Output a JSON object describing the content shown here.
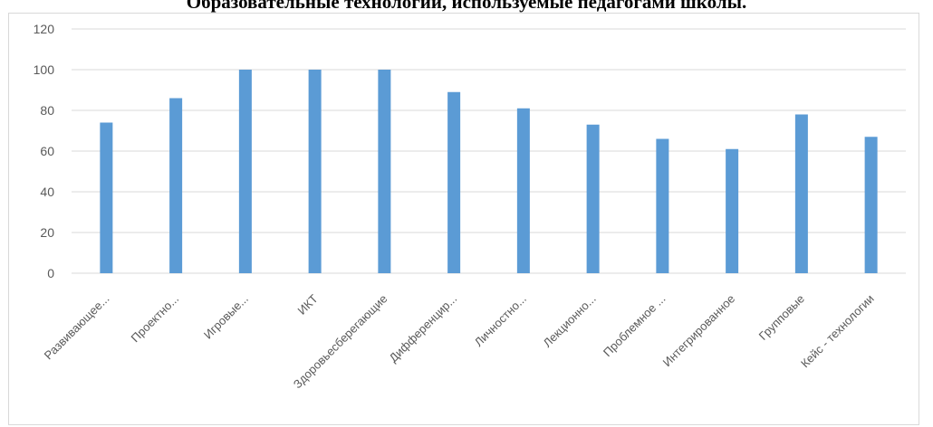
{
  "title": "Образовательные технологии, используемые педагогами школы.",
  "chart_data": {
    "type": "bar",
    "title": "",
    "xlabel": "",
    "ylabel": "",
    "categories": [
      "Развивающее...",
      "Проектно...",
      "Игровые...",
      "ИКТ",
      "Здоровьесберегающие",
      "Дифференцир...",
      "Личностно...",
      "Лекционно...",
      "Проблемное ...",
      "Интегрированное",
      "Групповые",
      "Кейс - технологии"
    ],
    "values": [
      74,
      86,
      100,
      100,
      100,
      89,
      81,
      73,
      66,
      61,
      78,
      67
    ],
    "ylim": [
      0,
      120
    ],
    "yticks": [
      0,
      20,
      40,
      60,
      80,
      100,
      120
    ],
    "grid": true,
    "legend": "none",
    "bar_color": "#5b9bd5",
    "grid_color": "#d9d9d9",
    "tick_label_color": "#595959"
  }
}
